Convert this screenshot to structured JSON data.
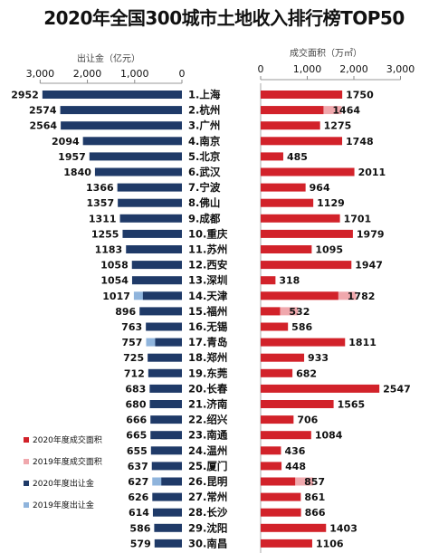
{
  "title": "2020年全国300城市土地收入排行榜TOP50",
  "chart_data": {
    "type": "bar",
    "layout": "back-to-back horizontal bar",
    "categories": [
      "1.上海",
      "2.杭州",
      "3.广州",
      "4.南京",
      "5.北京",
      "6.武汉",
      "7.宁波",
      "8.佛山",
      "9.成都",
      "10.重庆",
      "11.苏州",
      "12.西安",
      "13.深圳",
      "14.天津",
      "15.福州",
      "16.无锡",
      "17.青岛",
      "18.郑州",
      "19.东莞",
      "20.长春",
      "21.济南",
      "22.绍兴",
      "23.南通",
      "24.温州",
      "25.厦门",
      "26.昆明",
      "27.常州",
      "28.长沙",
      "29.沈阳",
      "30.南昌"
    ],
    "left_panel": {
      "xlabel": "出让金（亿元）",
      "xlim": [
        3000,
        0
      ],
      "ticks": [
        "3,000",
        "2,000",
        "1,000",
        "0"
      ],
      "series": [
        {
          "name": "2020年度出让金",
          "color": "#1f3a68",
          "values": [
            2952,
            2574,
            2564,
            2094,
            1957,
            1840,
            1366,
            1357,
            1311,
            1255,
            1183,
            1058,
            1054,
            1017,
            896,
            763,
            757,
            725,
            712,
            683,
            680,
            666,
            665,
            655,
            637,
            627,
            626,
            614,
            586,
            579
          ]
        },
        {
          "name": "2019年度出让金",
          "color": "#8fb4dc",
          "values": [
            null,
            null,
            null,
            null,
            null,
            null,
            null,
            null,
            null,
            null,
            null,
            null,
            null,
            1017,
            null,
            null,
            757,
            null,
            null,
            null,
            null,
            null,
            null,
            null,
            null,
            627,
            null,
            null,
            null,
            null
          ]
        }
      ]
    },
    "right_panel": {
      "xlabel": "成交面积（万㎡）",
      "xlim": [
        0,
        3000
      ],
      "ticks": [
        "0",
        "1,000",
        "2,000",
        "3,000"
      ],
      "series": [
        {
          "name": "2020年度成交面积",
          "color": "#d2222a",
          "values": [
            1750,
            1464,
            1275,
            1748,
            485,
            2011,
            964,
            1129,
            1701,
            1979,
            1095,
            1947,
            318,
            1782,
            532,
            586,
            1811,
            933,
            682,
            2547,
            1565,
            706,
            1084,
            436,
            448,
            857,
            861,
            866,
            1403,
            1106
          ]
        },
        {
          "name": "2019年度成交面积",
          "color": "#f0a8ad",
          "values": [
            null,
            1464,
            null,
            null,
            null,
            null,
            null,
            null,
            null,
            null,
            null,
            null,
            null,
            1782,
            532,
            null,
            null,
            null,
            null,
            null,
            null,
            null,
            null,
            null,
            null,
            857,
            null,
            null,
            null,
            null
          ]
        }
      ]
    },
    "legend": [
      {
        "name": "2020年度成交面积",
        "color": "#d2222a"
      },
      {
        "name": "2019年度成交面积",
        "color": "#f0a8ad"
      },
      {
        "name": "2020年度出让金",
        "color": "#1f3a68"
      },
      {
        "name": "2019年度出让金",
        "color": "#8fb4dc"
      }
    ],
    "legend_position": "lower-left"
  }
}
